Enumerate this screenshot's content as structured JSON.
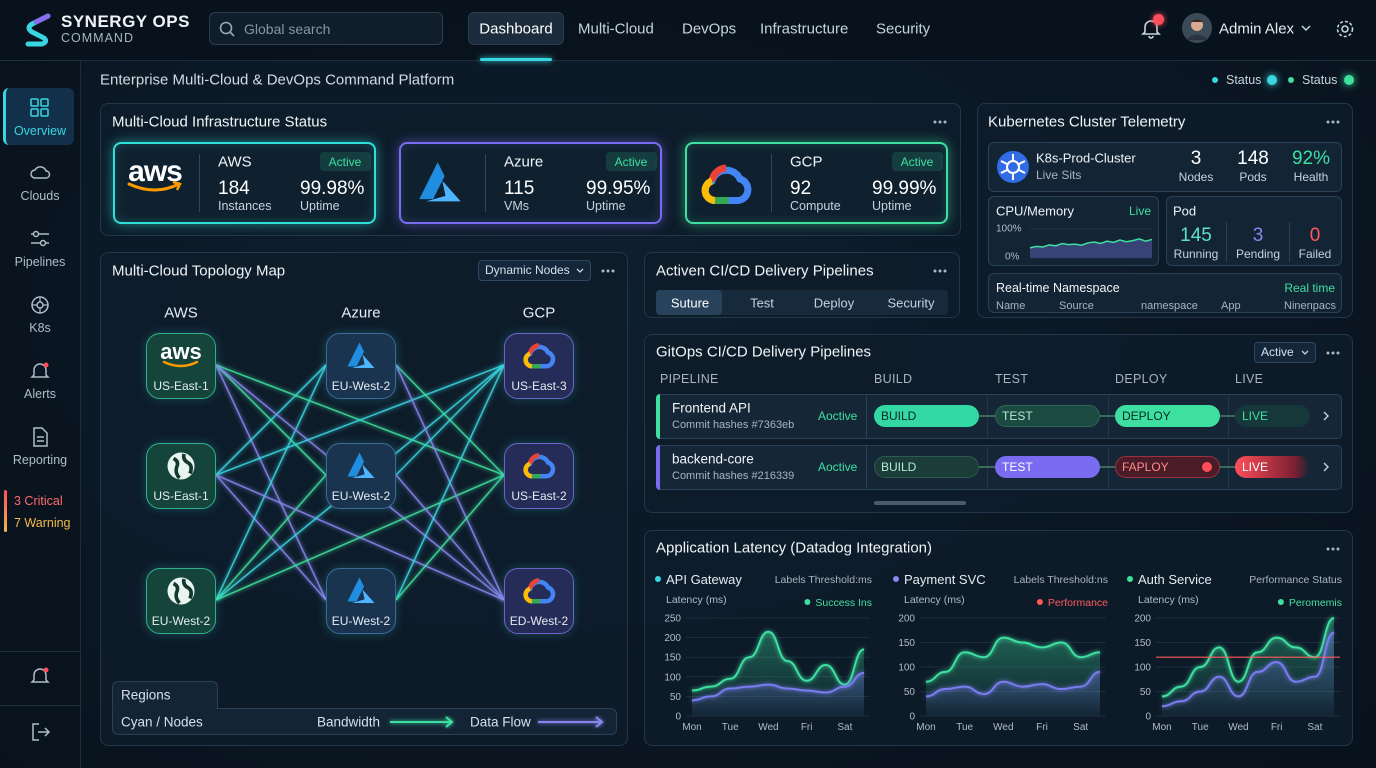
{
  "header": {
    "brand": "SYNERGY OPS",
    "brand_sub": "COMMAND",
    "search": "Global search",
    "nav": [
      "Dashboard",
      "Multi-Cloud",
      "DevOps",
      "Infrastructure",
      "Security"
    ],
    "user": "Admin Alex"
  },
  "sidebar": {
    "items": [
      "Overview",
      "Clouds",
      "Pipelines",
      "K8s",
      "Alerts",
      "Reporting"
    ],
    "alerts": [
      "3 Critical",
      "7 Warning"
    ]
  },
  "page": {
    "title": "Enterprise Multi-Cloud & DevOps Command Platform",
    "status": [
      "Status",
      "Status"
    ]
  },
  "infra": {
    "title": "Multi-Cloud Infrastructure Status",
    "logo": "aws",
    "clouds": [
      {
        "name": "AWS",
        "status": "Active",
        "count": "184",
        "count_label": "Instances",
        "uptime": "99.98%",
        "uptime_label": "Uptime"
      },
      {
        "name": "Azure",
        "status": "Active",
        "count": "115",
        "count_label": "VMs",
        "uptime": "99.95%",
        "uptime_label": "Uptime"
      },
      {
        "name": "GCP",
        "status": "Active",
        "count": "92",
        "count_label": "Compute",
        "uptime": "99.99%",
        "uptime_label": "Uptime"
      }
    ]
  },
  "k8s": {
    "title": "Kubernetes Cluster Telemetry",
    "cluster": "K8s-Prod-Cluster",
    "cluster_sub": "Live Sits",
    "stats": [
      {
        "value": "3",
        "label": "Nodes"
      },
      {
        "value": "148",
        "label": "Pods"
      },
      {
        "value": "92%",
        "label": "Health"
      }
    ],
    "cpu": {
      "title": "CPU/Memory",
      "status": "Live",
      "ylim": [
        0,
        100
      ],
      "yticks": [
        {
          "value": 100,
          "label": "100%"
        },
        {
          "value": 0,
          "label": "0%"
        }
      ],
      "values": [
        35,
        40,
        38,
        45,
        42,
        50,
        46,
        48,
        44,
        52,
        55,
        50,
        58,
        54,
        62,
        56,
        60,
        66,
        58,
        64
      ]
    },
    "pod": {
      "title": "Pod",
      "stats": [
        {
          "value": "145",
          "label": "Running"
        },
        {
          "value": "3",
          "label": "Pending"
        },
        {
          "value": "0",
          "label": "Failed"
        }
      ]
    },
    "namespace": {
      "title": "Real-time Namespace",
      "status": "Real time",
      "columns": [
        "Name",
        "Source",
        "namespace",
        "App",
        "Ninenpacs"
      ]
    }
  },
  "topology": {
    "title": "Multi-Cloud Topology Map",
    "filter": "Dynamic Nodes",
    "logo": "aws",
    "columns": [
      {
        "name": "AWS",
        "nodes": [
          "US-East-1",
          "US-East-1",
          "EU-West-2"
        ]
      },
      {
        "name": "Azure",
        "nodes": [
          "EU-West-2",
          "EU-West-2",
          "EU-West-2"
        ]
      },
      {
        "name": "GCP",
        "nodes": [
          "US-East-3",
          "US-East-2",
          "ED-West-2"
        ]
      }
    ],
    "legend": {
      "title": "Regions",
      "items": [
        "Cyan / Nodes",
        "Bandwidth",
        "Data Flow"
      ]
    }
  },
  "cicd": {
    "title": "Activen CI/CD Delivery Pipelines",
    "tabs": [
      "Suture",
      "Test",
      "Deploy",
      "Security"
    ]
  },
  "gitops": {
    "title": "GitOps CI/CD Delivery Pipelines",
    "filter": "Active",
    "columns": [
      "PIPELINE",
      "BUILD",
      "TEST",
      "DEPLOY",
      "LIVE"
    ],
    "rows": [
      {
        "name": "Frontend API",
        "commit": "Commit hashes #7363eb",
        "status": "Aoctive",
        "stages": [
          "BUILD",
          "TEST",
          "DEPLOY",
          "LIVE"
        ]
      },
      {
        "name": "backend-core",
        "commit": "Commit hashes #216339",
        "status": "Aoctive",
        "stages": [
          "BUILD",
          "TEST",
          "FAPLOY",
          "LIVE"
        ]
      }
    ]
  },
  "latency": {
    "title": "Application Latency (Datadog Integration)",
    "charts": [
      {
        "type": "line",
        "title": "API Gateway",
        "subtitle": "Labels Threshold:ms",
        "y_label": "Latency (ms)",
        "legend": "Success Ins",
        "color": "#3ad6e0",
        "legend_color": "#3ee0a0",
        "categories": [
          "Mon",
          null,
          "Tue",
          null,
          "Wed",
          null,
          "Fri",
          null,
          "Sat",
          null
        ],
        "ylim": [
          0,
          250
        ],
        "yticks": [
          0,
          50,
          100,
          150,
          200,
          250
        ],
        "grid": true,
        "series": [
          {
            "color": "#3ee0a0",
            "values": [
              65,
              75,
              95,
              150,
              215,
              140,
              90,
              130,
              80,
              170
            ]
          },
          {
            "color": "#7a7cf0",
            "values": [
              40,
              50,
              70,
              75,
              80,
              70,
              65,
              60,
              75,
              110
            ]
          }
        ]
      },
      {
        "type": "line",
        "title": "Payment SVC",
        "subtitle": "Labels Threshold:ns",
        "y_label": "Latency (ms)",
        "legend": "Performance",
        "color": "#8a86f0",
        "legend_color": "#ff5a5a",
        "categories": [
          "Mon",
          null,
          "Tue",
          null,
          "Wed",
          null,
          "Fri",
          null,
          "Sat",
          null
        ],
        "ylim": [
          0,
          200
        ],
        "yticks": [
          0,
          50,
          100,
          150,
          200
        ],
        "grid": true,
        "series": [
          {
            "color": "#3ee0a0",
            "values": [
              70,
              90,
              130,
              120,
              160,
              150,
              140,
              150,
              120,
              130
            ]
          },
          {
            "color": "#7a7cf0",
            "values": [
              40,
              55,
              60,
              45,
              70,
              60,
              65,
              55,
              60,
              90
            ]
          }
        ]
      },
      {
        "type": "line",
        "title": "Auth Service",
        "subtitle": "Performance Status",
        "y_label": "Latency (ms)",
        "legend": "Peromemis",
        "color": "#3ee0a0",
        "legend_color": "#3ee0a0",
        "categories": [
          "Mon",
          null,
          "Tue",
          null,
          "Wed",
          null,
          "Fri",
          null,
          "Sat",
          null
        ],
        "ylim": [
          0,
          200
        ],
        "yticks": [
          0,
          50,
          100,
          150,
          200
        ],
        "grid": true,
        "threshold": 120,
        "series": [
          {
            "color": "#3ee0a0",
            "values": [
              40,
              60,
              100,
              140,
              70,
              130,
              160,
              140,
              120,
              200
            ]
          },
          {
            "color": "#7a7cf0",
            "values": [
              20,
              30,
              50,
              80,
              40,
              90,
              110,
              70,
              80,
              170
            ]
          }
        ]
      }
    ]
  }
}
